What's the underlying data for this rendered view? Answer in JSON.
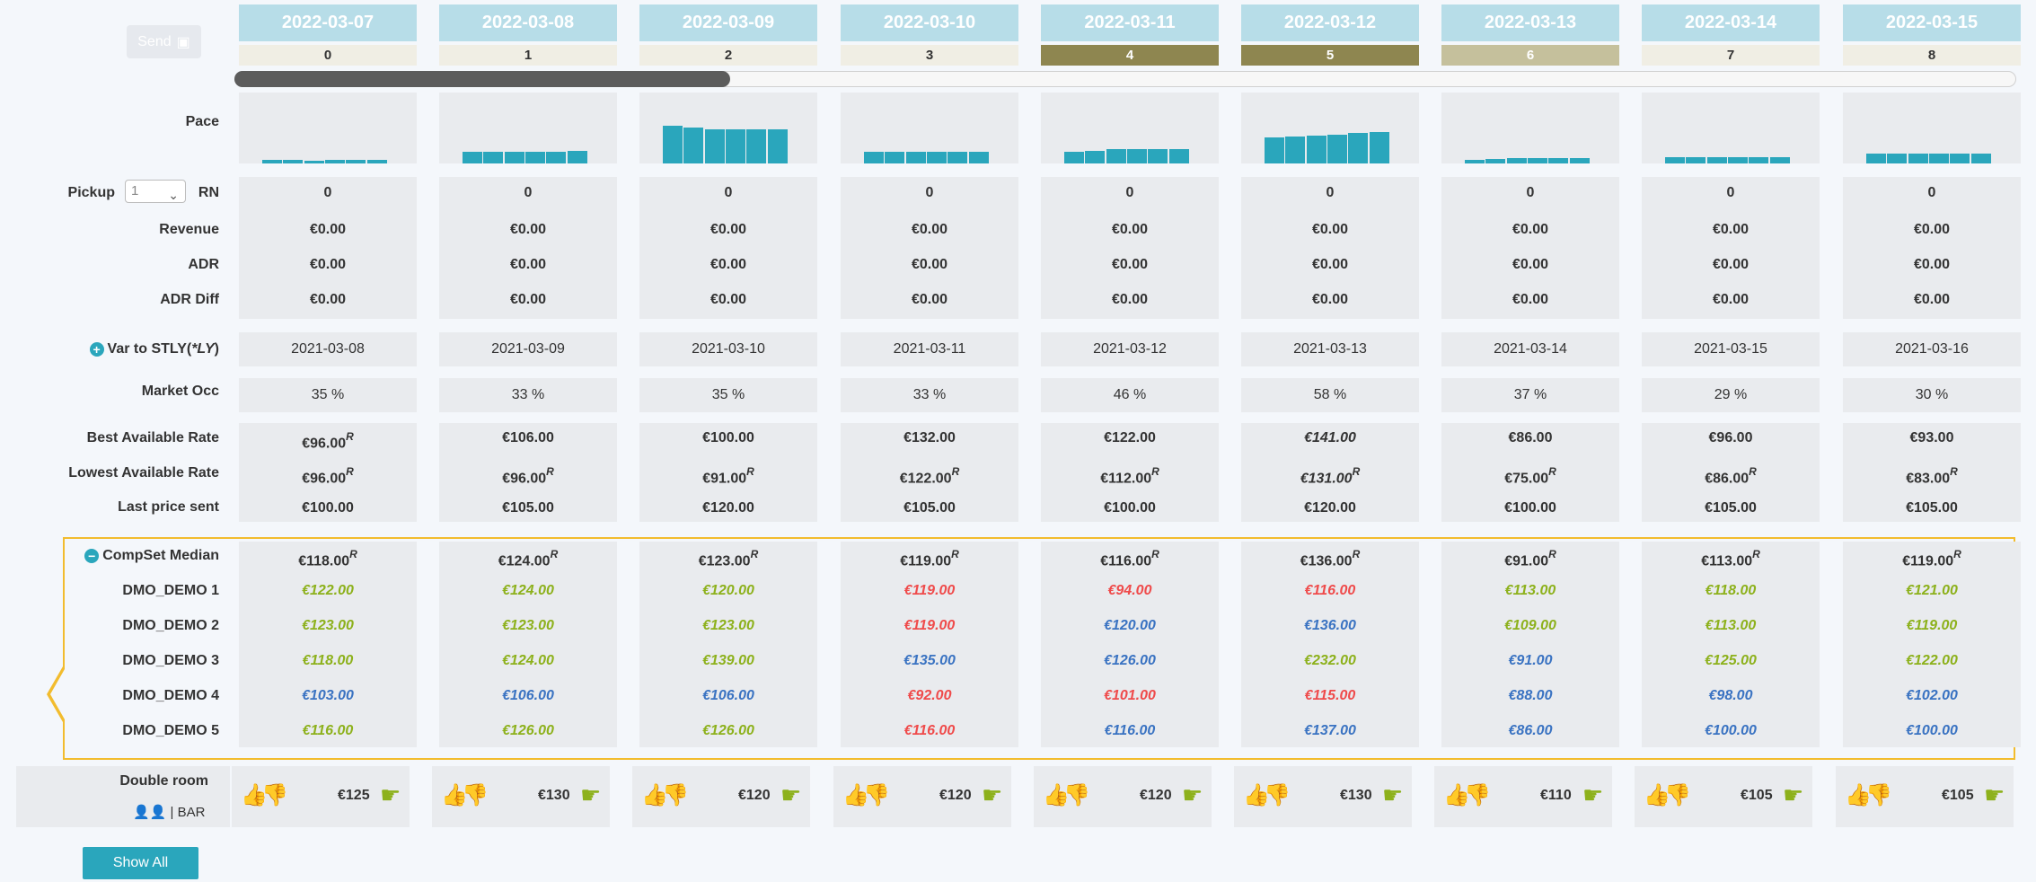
{
  "toolbar": {
    "send_label": "Send",
    "send_icon": "message-icon"
  },
  "columns": [
    {
      "date": "2022-03-07",
      "index": "0",
      "idx_style": "light",
      "pickup": "0",
      "revenue": "€0.00",
      "adr": "€0.00",
      "adr_diff": "€0.00",
      "stly": "2021-03-08",
      "market_occ": "35 %",
      "bar": {
        "v": "€96.00",
        "r": "R",
        "it": false
      },
      "lar": {
        "v": "€96.00",
        "r": "R",
        "it": false
      },
      "last_sent": "€100.00",
      "cs_median": {
        "v": "€118.00",
        "r": "R"
      },
      "demo": [
        {
          "v": "€122.00",
          "c": "green"
        },
        {
          "v": "€123.00",
          "c": "green"
        },
        {
          "v": "€118.00",
          "c": "green"
        },
        {
          "v": "€103.00",
          "c": "blue"
        },
        {
          "v": "€116.00",
          "c": "green"
        }
      ],
      "room_price": "€125",
      "pace": [
        0.06,
        0.06,
        0.05,
        0.06,
        0.06,
        0.06
      ]
    },
    {
      "date": "2022-03-08",
      "index": "1",
      "idx_style": "light",
      "pickup": "0",
      "revenue": "€0.00",
      "adr": "€0.00",
      "adr_diff": "€0.00",
      "stly": "2021-03-09",
      "market_occ": "33 %",
      "bar": {
        "v": "€106.00",
        "r": "",
        "it": false
      },
      "lar": {
        "v": "€96.00",
        "r": "R",
        "it": false
      },
      "last_sent": "€105.00",
      "cs_median": {
        "v": "€124.00",
        "r": "R"
      },
      "demo": [
        {
          "v": "€124.00",
          "c": "green"
        },
        {
          "v": "€123.00",
          "c": "green"
        },
        {
          "v": "€124.00",
          "c": "green"
        },
        {
          "v": "€106.00",
          "c": "blue"
        },
        {
          "v": "€126.00",
          "c": "green"
        }
      ],
      "room_price": "€130",
      "pace": [
        0.22,
        0.22,
        0.22,
        0.22,
        0.22,
        0.24
      ]
    },
    {
      "date": "2022-03-09",
      "index": "2",
      "idx_style": "light",
      "pickup": "0",
      "revenue": "€0.00",
      "adr": "€0.00",
      "adr_diff": "€0.00",
      "stly": "2021-03-10",
      "market_occ": "35 %",
      "bar": {
        "v": "€100.00",
        "r": "",
        "it": false
      },
      "lar": {
        "v": "€91.00",
        "r": "R",
        "it": false
      },
      "last_sent": "€120.00",
      "cs_median": {
        "v": "€123.00",
        "r": "R"
      },
      "demo": [
        {
          "v": "€120.00",
          "c": "green"
        },
        {
          "v": "€123.00",
          "c": "green"
        },
        {
          "v": "€139.00",
          "c": "green"
        },
        {
          "v": "€106.00",
          "c": "blue"
        },
        {
          "v": "€126.00",
          "c": "green"
        }
      ],
      "room_price": "€120",
      "pace": [
        0.7,
        0.66,
        0.64,
        0.64,
        0.64,
        0.64
      ]
    },
    {
      "date": "2022-03-10",
      "index": "3",
      "idx_style": "light",
      "pickup": "0",
      "revenue": "€0.00",
      "adr": "€0.00",
      "adr_diff": "€0.00",
      "stly": "2021-03-11",
      "market_occ": "33 %",
      "bar": {
        "v": "€132.00",
        "r": "",
        "it": false
      },
      "lar": {
        "v": "€122.00",
        "r": "R",
        "it": false
      },
      "last_sent": "€105.00",
      "cs_median": {
        "v": "€119.00",
        "r": "R"
      },
      "demo": [
        {
          "v": "€119.00",
          "c": "red"
        },
        {
          "v": "€119.00",
          "c": "red"
        },
        {
          "v": "€135.00",
          "c": "blue"
        },
        {
          "v": "€92.00",
          "c": "red"
        },
        {
          "v": "€116.00",
          "c": "red"
        }
      ],
      "room_price": "€120",
      "pace": [
        0.22,
        0.22,
        0.22,
        0.22,
        0.22,
        0.22
      ]
    },
    {
      "date": "2022-03-11",
      "index": "4",
      "idx_style": "dark",
      "pickup": "0",
      "revenue": "€0.00",
      "adr": "€0.00",
      "adr_diff": "€0.00",
      "stly": "2021-03-12",
      "market_occ": "46 %",
      "bar": {
        "v": "€122.00",
        "r": "",
        "it": false
      },
      "lar": {
        "v": "€112.00",
        "r": "R",
        "it": false
      },
      "last_sent": "€100.00",
      "cs_median": {
        "v": "€116.00",
        "r": "R"
      },
      "demo": [
        {
          "v": "€94.00",
          "c": "red"
        },
        {
          "v": "€120.00",
          "c": "blue"
        },
        {
          "v": "€126.00",
          "c": "blue"
        },
        {
          "v": "€101.00",
          "c": "red"
        },
        {
          "v": "€116.00",
          "c": "blue"
        }
      ],
      "room_price": "€120",
      "pace": [
        0.22,
        0.24,
        0.26,
        0.26,
        0.26,
        0.26
      ]
    },
    {
      "date": "2022-03-12",
      "index": "5",
      "idx_style": "dark",
      "pickup": "0",
      "revenue": "€0.00",
      "adr": "€0.00",
      "adr_diff": "€0.00",
      "stly": "2021-03-13",
      "market_occ": "58 %",
      "bar": {
        "v": "€141.00",
        "r": "",
        "it": true
      },
      "lar": {
        "v": "€131.00",
        "r": "R",
        "it": true
      },
      "last_sent": "€120.00",
      "cs_median": {
        "v": "€136.00",
        "r": "R"
      },
      "demo": [
        {
          "v": "€116.00",
          "c": "red"
        },
        {
          "v": "€136.00",
          "c": "blue"
        },
        {
          "v": "€232.00",
          "c": "green"
        },
        {
          "v": "€115.00",
          "c": "red"
        },
        {
          "v": "€137.00",
          "c": "blue"
        }
      ],
      "room_price": "€130",
      "pace": [
        0.48,
        0.5,
        0.52,
        0.54,
        0.56,
        0.58
      ]
    },
    {
      "date": "2022-03-13",
      "index": "6",
      "idx_style": "mid",
      "pickup": "0",
      "revenue": "€0.00",
      "adr": "€0.00",
      "adr_diff": "€0.00",
      "stly": "2021-03-14",
      "market_occ": "37 %",
      "bar": {
        "v": "€86.00",
        "r": "",
        "it": false
      },
      "lar": {
        "v": "€75.00",
        "r": "R",
        "it": false
      },
      "last_sent": "€100.00",
      "cs_median": {
        "v": "€91.00",
        "r": "R"
      },
      "demo": [
        {
          "v": "€113.00",
          "c": "green"
        },
        {
          "v": "€109.00",
          "c": "green"
        },
        {
          "v": "€91.00",
          "c": "blue"
        },
        {
          "v": "€88.00",
          "c": "blue"
        },
        {
          "v": "€86.00",
          "c": "blue"
        }
      ],
      "room_price": "€110",
      "pace": [
        0.06,
        0.08,
        0.1,
        0.1,
        0.1,
        0.1
      ]
    },
    {
      "date": "2022-03-14",
      "index": "7",
      "idx_style": "light",
      "pickup": "0",
      "revenue": "€0.00",
      "adr": "€0.00",
      "adr_diff": "€0.00",
      "stly": "2021-03-15",
      "market_occ": "29 %",
      "bar": {
        "v": "€96.00",
        "r": "",
        "it": false
      },
      "lar": {
        "v": "€86.00",
        "r": "R",
        "it": false
      },
      "last_sent": "€105.00",
      "cs_median": {
        "v": "€113.00",
        "r": "R"
      },
      "demo": [
        {
          "v": "€118.00",
          "c": "green"
        },
        {
          "v": "€113.00",
          "c": "green"
        },
        {
          "v": "€125.00",
          "c": "green"
        },
        {
          "v": "€98.00",
          "c": "blue"
        },
        {
          "v": "€100.00",
          "c": "blue"
        }
      ],
      "room_price": "€105",
      "pace": [
        0.12,
        0.12,
        0.12,
        0.12,
        0.12,
        0.12
      ]
    },
    {
      "date": "2022-03-15",
      "index": "8",
      "idx_style": "light",
      "pickup": "0",
      "revenue": "€0.00",
      "adr": "€0.00",
      "adr_diff": "€0.00",
      "stly": "2021-03-16",
      "market_occ": "30 %",
      "bar": {
        "v": "€93.00",
        "r": "",
        "it": false
      },
      "lar": {
        "v": "€83.00",
        "r": "R",
        "it": false
      },
      "last_sent": "€105.00",
      "cs_median": {
        "v": "€119.00",
        "r": "R"
      },
      "demo": [
        {
          "v": "€121.00",
          "c": "green"
        },
        {
          "v": "€119.00",
          "c": "green"
        },
        {
          "v": "€122.00",
          "c": "green"
        },
        {
          "v": "€102.00",
          "c": "blue"
        },
        {
          "v": "€100.00",
          "c": "blue"
        }
      ],
      "room_price": "€105",
      "pace": [
        0.18,
        0.18,
        0.18,
        0.18,
        0.18,
        0.18
      ]
    }
  ],
  "labels": {
    "pace": "Pace",
    "pickup": "Pickup",
    "pickup_value": "1",
    "rn": "RN",
    "revenue": "Revenue",
    "adr": "ADR",
    "adr_diff": "ADR Diff",
    "var_stly": "Var to STLY(",
    "var_stly_ly": "*LY",
    "var_stly_close": ")",
    "market_occ": "Market Occ",
    "best_available_rate": "Best Available Rate",
    "lowest_available_rate": "Lowest Available Rate",
    "last_price_sent": "Last price sent",
    "compset_median": "CompSet Median",
    "demo": [
      "DMO_DEMO 1",
      "DMO_DEMO 2",
      "DMO_DEMO 3",
      "DMO_DEMO 4",
      "DMO_DEMO 5"
    ],
    "room_type": "Double room",
    "room_plan": "| BAR",
    "show_all": "Show All"
  },
  "colors": {
    "accent": "#2aa6bc",
    "compset_border": "#f2bc2e",
    "green": "#8db11c",
    "red": "#ef4b4b",
    "blue": "#3a73c2"
  }
}
